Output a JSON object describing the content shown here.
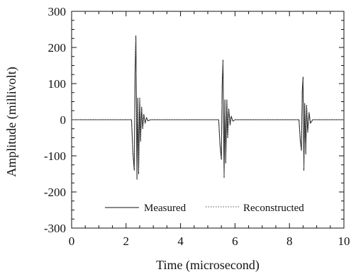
{
  "chart_data": {
    "type": "line",
    "title": "",
    "xlabel": "Time  (microsecond)",
    "ylabel": "Amplitude  (millivolt)",
    "xlim": [
      0,
      10
    ],
    "ylim": [
      -300,
      300
    ],
    "xticks": [
      0,
      2,
      4,
      6,
      8,
      10
    ],
    "yticks": [
      300,
      200,
      100,
      0,
      -100,
      -200,
      -300
    ],
    "grid": false,
    "legend_position": "bottom-center",
    "series": [
      {
        "name": "Measured",
        "style": "solid",
        "color": "#111111",
        "x": [
          0,
          2.2,
          2.25,
          2.3,
          2.33,
          2.36,
          2.4,
          2.43,
          2.46,
          2.5,
          2.53,
          2.57,
          2.61,
          2.65,
          2.7,
          2.75,
          2.8,
          2.9,
          3.0,
          5.4,
          5.45,
          5.5,
          5.53,
          5.56,
          5.6,
          5.63,
          5.66,
          5.7,
          5.73,
          5.77,
          5.82,
          5.86,
          5.92,
          6.0,
          8.35,
          8.4,
          8.44,
          8.47,
          8.5,
          8.53,
          8.56,
          8.6,
          8.63,
          8.67,
          8.72,
          8.77,
          8.85,
          10
        ],
        "y": [
          0,
          0,
          -90,
          -140,
          130,
          232,
          -165,
          60,
          -150,
          60,
          -60,
          35,
          -25,
          15,
          -10,
          6,
          -3,
          0,
          0,
          0,
          -70,
          -110,
          100,
          165,
          -160,
          55,
          -120,
          55,
          -50,
          30,
          -15,
          10,
          -4,
          0,
          0,
          -60,
          -85,
          80,
          118,
          -140,
          45,
          -95,
          40,
          -35,
          20,
          -10,
          0,
          0
        ]
      },
      {
        "name": "Reconstructed",
        "style": "dotted",
        "color": "#555555",
        "x": [
          0,
          2.2,
          2.25,
          2.3,
          2.33,
          2.36,
          2.4,
          2.43,
          2.46,
          2.5,
          2.53,
          2.57,
          2.61,
          2.65,
          2.7,
          2.75,
          2.8,
          2.9,
          3.0,
          5.4,
          5.45,
          5.5,
          5.53,
          5.56,
          5.6,
          5.63,
          5.66,
          5.7,
          5.73,
          5.77,
          5.82,
          5.86,
          5.92,
          6.0,
          8.35,
          8.4,
          8.44,
          8.47,
          8.5,
          8.53,
          8.56,
          8.6,
          8.63,
          8.67,
          8.72,
          8.77,
          8.85,
          10
        ],
        "y": [
          0,
          0,
          -85,
          -135,
          125,
          225,
          -160,
          58,
          -145,
          58,
          -58,
          33,
          -23,
          14,
          -9,
          5,
          -3,
          0,
          0,
          0,
          -65,
          -105,
          95,
          160,
          -155,
          52,
          -115,
          52,
          -48,
          28,
          -14,
          9,
          -4,
          0,
          0,
          -55,
          -80,
          76,
          112,
          -135,
          42,
          -90,
          38,
          -33,
          18,
          -9,
          0,
          0
        ]
      }
    ]
  },
  "legend": {
    "measured_label": "Measured",
    "reconstructed_label": "Reconstructed"
  }
}
